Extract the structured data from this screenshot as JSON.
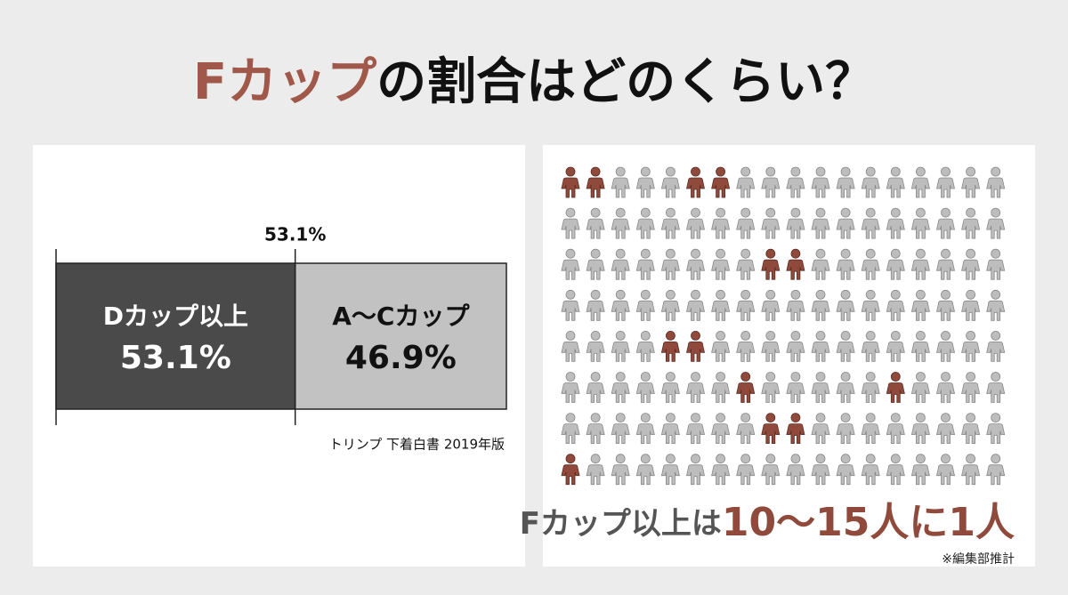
{
  "header": {
    "title_highlight": "Fカップ",
    "title_rest": "の割合はどのくらい？"
  },
  "chart_data": {
    "type": "stacked-bar",
    "xlim": [
      0,
      100
    ],
    "series": [
      {
        "name": "Dカップ以上",
        "color": "#4a4a4a",
        "values": [
          53.1
        ],
        "value_labels": [
          "53.1%"
        ]
      },
      {
        "name": "A〜Cカップ",
        "color": "#c2c2c2",
        "values": [
          46.9
        ],
        "value_labels": [
          "46.9%"
        ]
      }
    ],
    "source": "トリンプ 下着白書 2019年版"
  },
  "pictogram": {
    "rows": 8,
    "cols": 18,
    "base_color": "#bdbdbd",
    "highlight_color": "#8f4a3c",
    "highlighted": [
      [
        0,
        0
      ],
      [
        0,
        1
      ],
      [
        0,
        5
      ],
      [
        0,
        6
      ],
      [
        2,
        8
      ],
      [
        2,
        9
      ],
      [
        4,
        4
      ],
      [
        4,
        5
      ],
      [
        5,
        7
      ],
      [
        5,
        13
      ],
      [
        6,
        8
      ],
      [
        6,
        9
      ],
      [
        7,
        0
      ]
    ],
    "caption_lead": "Fカップ以上は",
    "caption_emphasis": "10〜15人に1人",
    "note": "※編集部推計"
  }
}
